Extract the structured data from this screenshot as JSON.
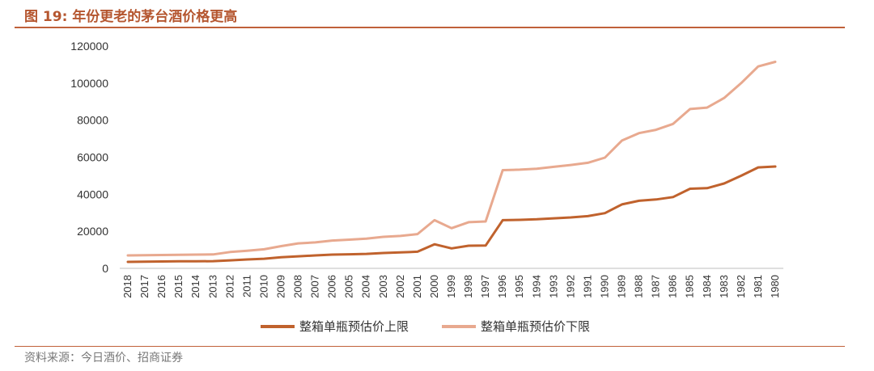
{
  "header": {
    "title": "图 19:  年份更老的茅台酒价格更高"
  },
  "footer": {
    "source": "资料来源：今日酒价、招商证券"
  },
  "colors": {
    "accent": "#c0613a",
    "series_upper": "#c0622d",
    "series_lower": "#e8a98f"
  },
  "chart_data": {
    "type": "line",
    "x": [
      "2018",
      "2017",
      "2016",
      "2015",
      "2014",
      "2013",
      "2012",
      "2011",
      "2010",
      "2009",
      "2008",
      "2007",
      "2006",
      "2005",
      "2004",
      "2003",
      "2002",
      "2001",
      "2000",
      "1999",
      "1998",
      "1997",
      "1996",
      "1995",
      "1994",
      "1993",
      "1992",
      "1991",
      "1990",
      "1989",
      "1988",
      "1987",
      "1986",
      "1985",
      "1984",
      "1983",
      "1982",
      "1981",
      "1980"
    ],
    "ylim": [
      0,
      120000
    ],
    "yticks": [
      0,
      20000,
      40000,
      60000,
      80000,
      100000,
      120000
    ],
    "grid": false,
    "legend_position": "bottom",
    "series": [
      {
        "name": "整箱单瓶预估价上限",
        "color": "#c0622d",
        "values": [
          3500,
          3600,
          3700,
          3800,
          3800,
          3900,
          4300,
          4800,
          5200,
          6000,
          6500,
          7000,
          7400,
          7600,
          7800,
          8300,
          8600,
          9000,
          13000,
          10800,
          12200,
          12300,
          26000,
          26200,
          26500,
          27000,
          27500,
          28200,
          29800,
          34500,
          36500,
          37200,
          38500,
          43000,
          43300,
          45800,
          50000,
          54500,
          55000
        ]
      },
      {
        "name": "整箱单瓶预估价下限",
        "color": "#e8a98f",
        "values": [
          7000,
          7100,
          7200,
          7300,
          7400,
          7500,
          8800,
          9500,
          10300,
          12000,
          13500,
          14000,
          15000,
          15500,
          16000,
          17000,
          17500,
          18500,
          26000,
          21700,
          24900,
          25300,
          53000,
          53300,
          53800,
          54800,
          55800,
          57000,
          59800,
          69000,
          73000,
          74800,
          78000,
          86000,
          86800,
          92000,
          100000,
          109000,
          111500
        ]
      }
    ]
  }
}
